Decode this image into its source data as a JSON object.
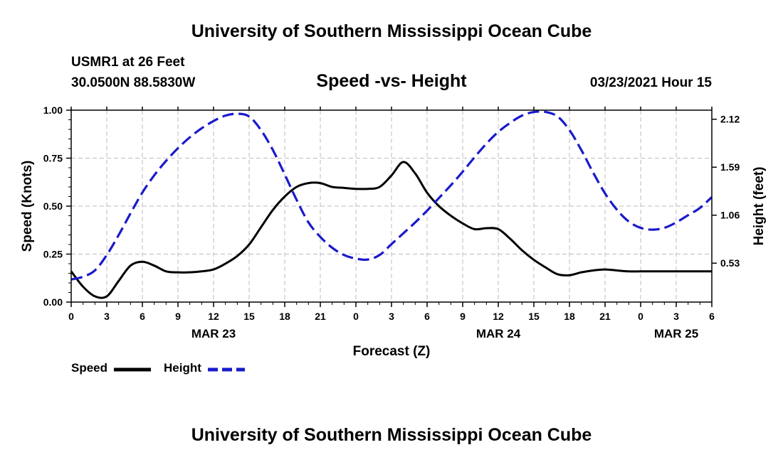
{
  "header": {
    "title": "University of Southern Mississippi Ocean Cube",
    "station": "USMR1 at 26 Feet",
    "coords": "30.0500N 88.5830W",
    "subtitle": "Speed -vs- Height",
    "datetime": "03/23/2021 Hour 15"
  },
  "footer": {
    "title": "University of Southern Mississippi Ocean Cube"
  },
  "legend": {
    "speed_label": "Speed",
    "height_label": "Height"
  },
  "colors": {
    "speed": "#000000",
    "height": "#1a1acc",
    "grid": "#bbbbbb"
  },
  "chart_data": {
    "type": "line",
    "title": "Speed -vs- Height",
    "xlabel": "Forecast (Z)",
    "ylabel": "Speed (Knots)",
    "y2label": "Height (feet)",
    "x_range": [
      0,
      54
    ],
    "x_tick_values": [
      0,
      3,
      6,
      9,
      12,
      15,
      18,
      21,
      24,
      27,
      30,
      33,
      36,
      39,
      42,
      45,
      48,
      51,
      54
    ],
    "x_tick_labels": [
      "0",
      "3",
      "6",
      "9",
      "12",
      "15",
      "18",
      "21",
      "0",
      "3",
      "6",
      "9",
      "12",
      "15",
      "18",
      "21",
      "0",
      "3",
      "6"
    ],
    "date_labels": [
      {
        "x": 12,
        "label": "MAR 23"
      },
      {
        "x": 36,
        "label": "MAR 24"
      },
      {
        "x": 51,
        "label": "MAR 25"
      }
    ],
    "y_left": {
      "range": [
        0,
        1
      ],
      "ticks": [
        0,
        0.25,
        0.5,
        0.75,
        1.0
      ],
      "tick_labels": [
        "0.00",
        "0.25",
        "0.50",
        "0.75",
        "1.00"
      ]
    },
    "y_right": {
      "range": [
        0.1,
        2.22
      ],
      "ticks": [
        0.53,
        1.06,
        1.59,
        2.12
      ],
      "tick_labels": [
        "0.53",
        "1.06",
        "1.59",
        "2.12"
      ]
    },
    "grid": true,
    "series": [
      {
        "name": "Speed",
        "axis": "left",
        "style": "solid",
        "x": [
          0,
          1,
          2,
          3,
          4,
          5,
          6,
          7,
          8,
          9,
          10,
          11,
          12,
          13,
          14,
          15,
          16,
          17,
          18,
          19,
          20,
          21,
          22,
          23,
          24,
          25,
          26,
          27,
          28,
          29,
          30,
          31,
          32,
          33,
          34,
          35,
          36,
          37,
          38,
          39,
          40,
          41,
          42,
          43,
          44,
          45,
          46,
          47,
          48,
          49,
          50,
          51,
          52,
          53,
          54
        ],
        "values": [
          0.16,
          0.08,
          0.03,
          0.03,
          0.11,
          0.19,
          0.21,
          0.19,
          0.16,
          0.155,
          0.155,
          0.16,
          0.17,
          0.2,
          0.24,
          0.3,
          0.39,
          0.48,
          0.55,
          0.6,
          0.62,
          0.62,
          0.6,
          0.595,
          0.59,
          0.59,
          0.6,
          0.66,
          0.73,
          0.67,
          0.57,
          0.5,
          0.45,
          0.41,
          0.38,
          0.385,
          0.38,
          0.33,
          0.27,
          0.22,
          0.18,
          0.145,
          0.14,
          0.155,
          0.165,
          0.17,
          0.165,
          0.16,
          0.16,
          0.16,
          0.16,
          0.16,
          0.16,
          0.16,
          0.16
        ]
      },
      {
        "name": "Height",
        "axis": "right",
        "style": "dashed",
        "x": [
          0,
          1,
          2,
          3,
          4,
          5,
          6,
          7,
          8,
          9,
          10,
          11,
          12,
          13,
          14,
          15,
          16,
          17,
          18,
          19,
          20,
          21,
          22,
          23,
          24,
          25,
          26,
          27,
          28,
          29,
          30,
          31,
          32,
          33,
          34,
          35,
          36,
          37,
          38,
          39,
          40,
          41,
          42,
          43,
          44,
          45,
          46,
          47,
          48,
          49,
          50,
          51,
          52,
          53,
          54
        ],
        "values": [
          0.35,
          0.38,
          0.45,
          0.62,
          0.84,
          1.08,
          1.31,
          1.5,
          1.66,
          1.8,
          1.92,
          2.02,
          2.1,
          2.16,
          2.18,
          2.15,
          2.0,
          1.78,
          1.51,
          1.23,
          0.98,
          0.82,
          0.7,
          0.62,
          0.58,
          0.57,
          0.62,
          0.74,
          0.86,
          0.98,
          1.11,
          1.25,
          1.39,
          1.54,
          1.7,
          1.85,
          1.98,
          2.08,
          2.16,
          2.2,
          2.2,
          2.15,
          2.0,
          1.78,
          1.53,
          1.3,
          1.12,
          0.99,
          0.92,
          0.9,
          0.92,
          0.98,
          1.06,
          1.14,
          1.26
        ]
      }
    ]
  }
}
